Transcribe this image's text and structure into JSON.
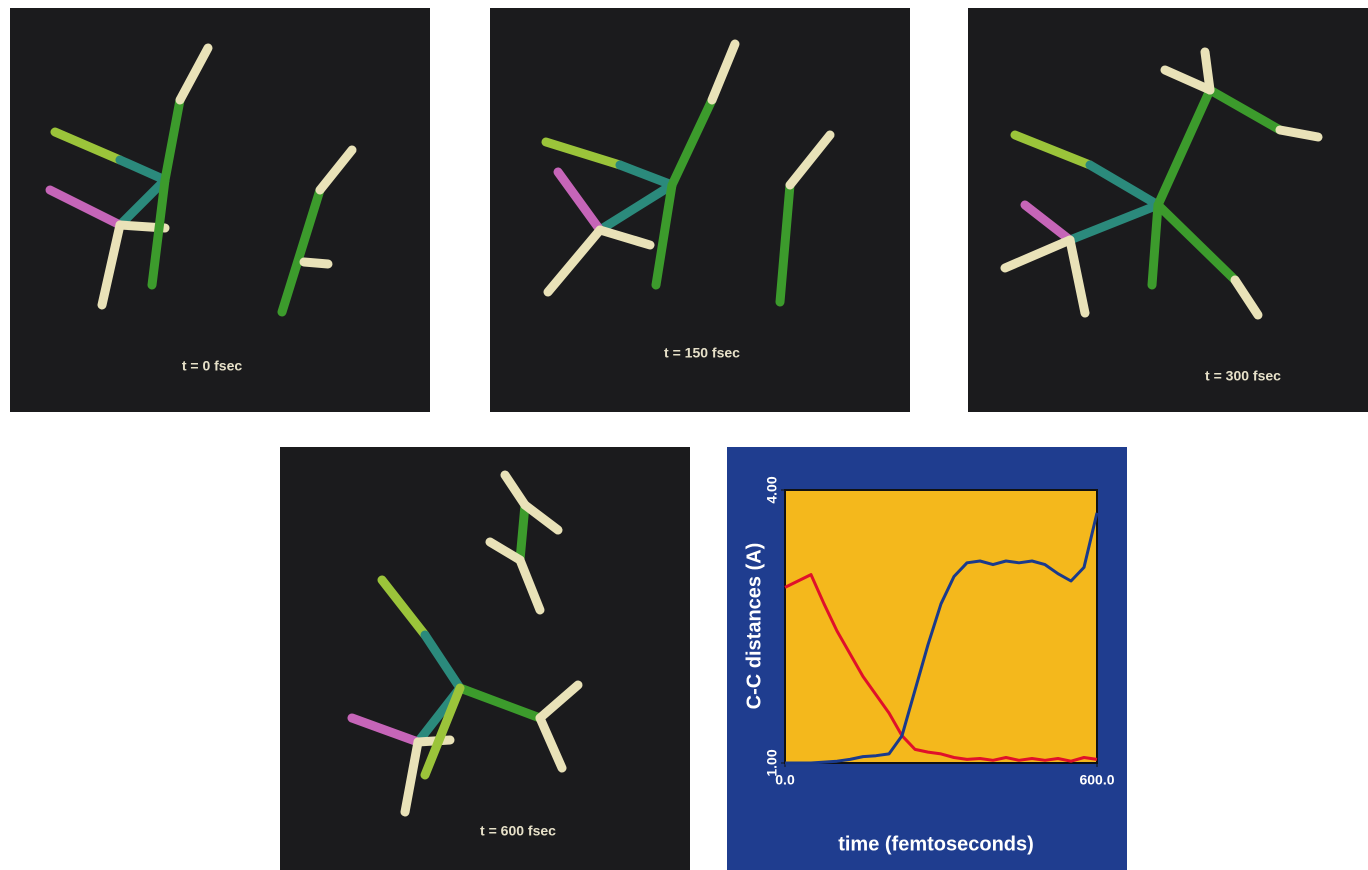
{
  "panels": [
    {
      "label": "t = 0 fsec"
    },
    {
      "label": "t = 150 fsec"
    },
    {
      "label": "t = 300 fsec"
    },
    {
      "label": "t = 600 fsec"
    }
  ],
  "chart_data": {
    "type": "line",
    "x_label": "time (femtoseconds)",
    "y_label": "C-C distances (A)",
    "x": [
      0,
      25,
      50,
      75,
      100,
      125,
      150,
      175,
      200,
      225,
      250,
      275,
      300,
      325,
      350,
      375,
      400,
      425,
      450,
      475,
      500,
      525,
      550,
      575,
      600
    ],
    "series": [
      {
        "color": "#e0102a",
        "values": [
          2.93,
          3.0,
          3.07,
          2.75,
          2.45,
          2.2,
          1.95,
          1.75,
          1.55,
          1.3,
          1.15,
          1.12,
          1.1,
          1.06,
          1.04,
          1.05,
          1.03,
          1.06,
          1.03,
          1.05,
          1.03,
          1.05,
          1.02,
          1.06,
          1.04
        ]
      },
      {
        "color": "#1a3a8c",
        "values": [
          1.0,
          1.0,
          1.0,
          1.01,
          1.02,
          1.04,
          1.07,
          1.08,
          1.1,
          1.3,
          1.8,
          2.3,
          2.75,
          3.05,
          3.2,
          3.22,
          3.18,
          3.22,
          3.2,
          3.22,
          3.18,
          3.08,
          3.0,
          3.15,
          3.75
        ]
      }
    ],
    "xlim": [
      0,
      600
    ],
    "ylim": [
      1,
      4
    ],
    "xticks": [
      {
        "value": 0,
        "label": "0.0"
      },
      {
        "value": 600,
        "label": "600.0"
      }
    ],
    "yticks": [
      {
        "value": 1,
        "label": "1.00"
      },
      {
        "value": 4,
        "label": "4.00"
      }
    ]
  }
}
